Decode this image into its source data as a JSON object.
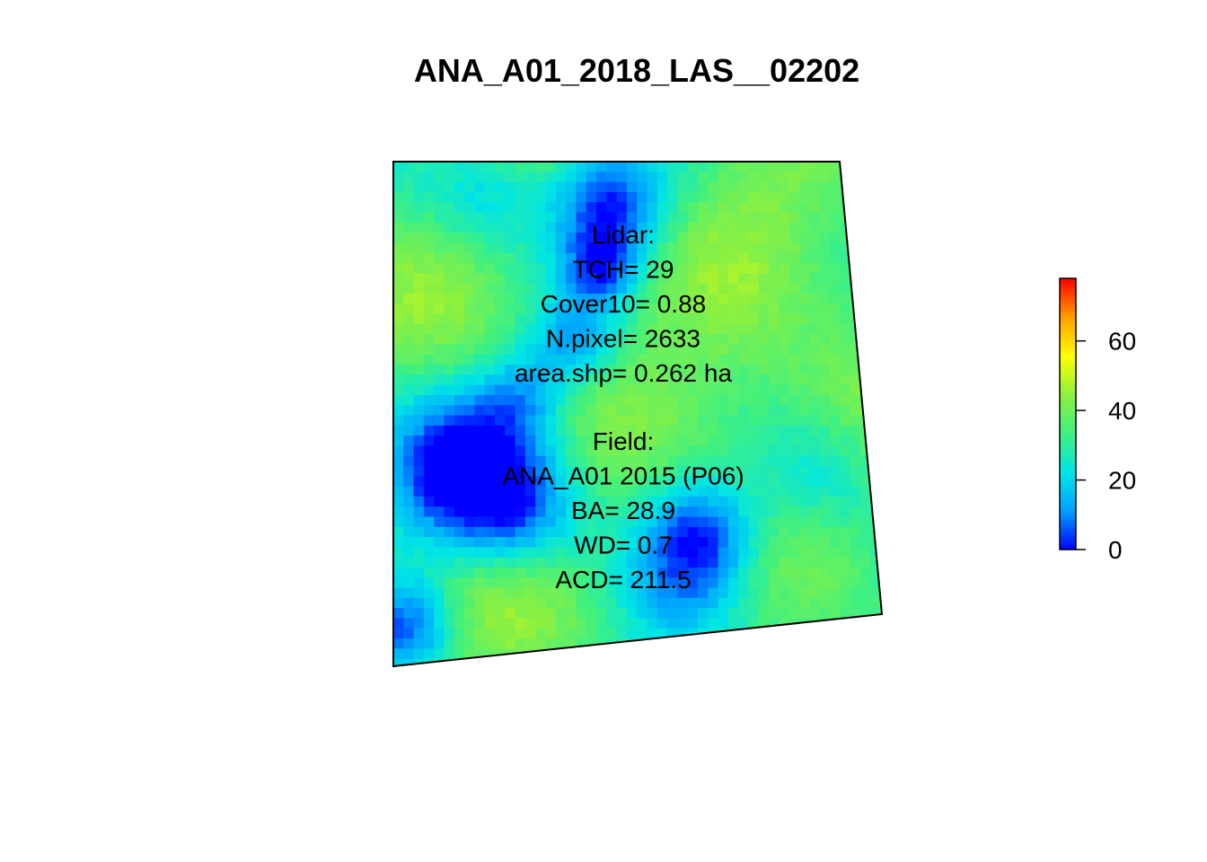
{
  "title": "ANA_A01_2018_LAS__02202",
  "chart_data": {
    "type": "heatmap",
    "title": "ANA_A01_2018_LAS__02202",
    "colorbar": {
      "ticks": [
        0,
        20,
        40,
        60
      ],
      "range": [
        0,
        78
      ],
      "palette": [
        "#0000ff",
        "#00a0ff",
        "#00e5e5",
        "#40f080",
        "#8cf040",
        "#ffff00",
        "#ffa000",
        "#ff0000"
      ]
    },
    "annotations": {
      "lidar": [
        "Lidar:",
        "TCH= 29",
        "Cover10= 0.88",
        "N.pixel= 2633",
        "area.shp= 0.262 ha"
      ],
      "field": [
        "Field:",
        "ANA_A01 2015 (P06)",
        "BA= 28.9",
        "WD= 0.7",
        "ACD= 211.5"
      ]
    },
    "canopy_height_summary": {
      "dominant_range": [
        25,
        45
      ],
      "low_patches": [
        0,
        12
      ]
    }
  }
}
